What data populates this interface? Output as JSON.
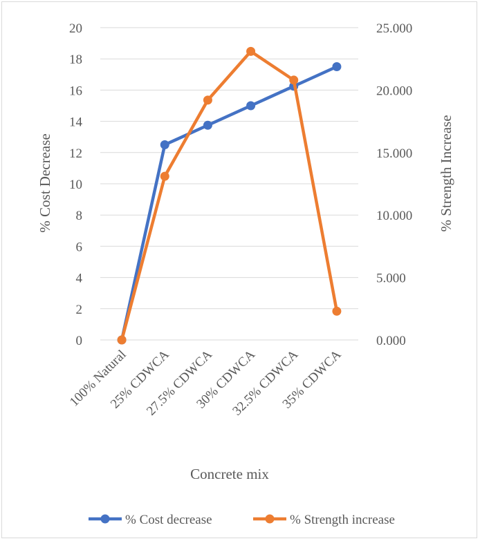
{
  "chart_data": {
    "type": "line",
    "categories": [
      "100% Natural",
      "25% CDWCA",
      "27.5% CDWCA",
      "30% CDWCA",
      "32.5% CDWCA",
      "35% CDWCA"
    ],
    "series": [
      {
        "name": "% Cost decrease",
        "axis": "left",
        "color": "#4472c4",
        "values": [
          0,
          12.5,
          13.75,
          15.0,
          16.25,
          17.5
        ]
      },
      {
        "name": "% Strength increase",
        "axis": "right",
        "color": "#ed7d31",
        "values": [
          0,
          13.1,
          19.2,
          23.1,
          20.8,
          2.3
        ]
      }
    ],
    "xlabel": "Concrete mix",
    "ylabel": "% Cost Decrease",
    "y2label": "% Strength Increase",
    "ylim": [
      0,
      20
    ],
    "y2lim": [
      0,
      25
    ],
    "yticks": [
      "0",
      "2",
      "4",
      "6",
      "8",
      "10",
      "12",
      "14",
      "16",
      "18",
      "20"
    ],
    "y2ticks": [
      "0.000",
      "5.000",
      "10.000",
      "15.000",
      "20.000",
      "25.000"
    ],
    "grid": true,
    "legend": "bottom"
  }
}
